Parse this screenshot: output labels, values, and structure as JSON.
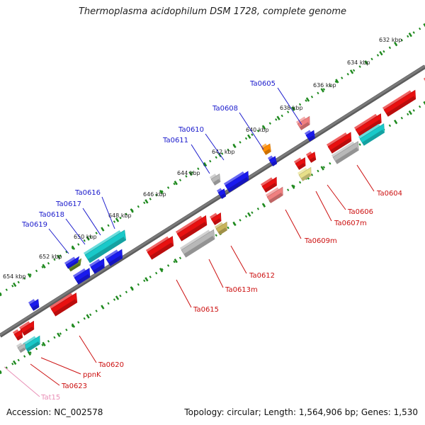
{
  "header": {
    "title": "Thermoplasma acidophilum DSM 1728, complete genome"
  },
  "footer": {
    "accession": "Accession: NC_002578",
    "summary": "Topology: circular; Length: 1,564,906 bp; Genes: 1,530"
  },
  "colors": {
    "backbone": "#7a7a7a",
    "ticks": "#1f8a1f",
    "label_upper": "#1a1acc",
    "label_lower": "#cc1010",
    "label_trna": "#e98fb6",
    "red": "#e81010",
    "blue": "#1a1aee",
    "grey": "#b8b8b8",
    "cyan": "#19c9c9",
    "pink": "#f08080",
    "orange": "#ff8c00",
    "khaki": "#c8b45a",
    "paleyellow": "#e8e08a",
    "olive": "#6b8e23"
  },
  "kbp_ticks": [
    "632 kbp",
    "634 kbp",
    "636 kbp",
    "638 kbp",
    "640 kbp",
    "642 kbp",
    "644 kbp",
    "646 kbp",
    "648 kbp",
    "650 kbp",
    "652 kbp",
    "654 kbp"
  ],
  "upper_labels": [
    "Ta0605",
    "Ta0608",
    "Ta0610",
    "Ta0611",
    "Ta0616",
    "Ta0617",
    "Ta0618",
    "Ta0619"
  ],
  "lower_labels": [
    "Ta0604",
    "Ta0606",
    "Ta0607m",
    "Ta0609m",
    "Ta0612",
    "Ta0613m",
    "Ta0615",
    "Ta0620",
    "ppnK",
    "Ta0623",
    "Tat15"
  ],
  "genes": [
    {
      "name": "gene-red-a",
      "strand": "upper",
      "color": "red"
    },
    {
      "name": "gene-pink-a",
      "strand": "upper",
      "color": "pink"
    },
    {
      "name": "gene-blue-ta0605",
      "strand": "upper",
      "color": "blue"
    },
    {
      "name": "gene-orange-ta0608",
      "strand": "upper",
      "color": "orange"
    },
    {
      "name": "gene-blue-ta0608b",
      "strand": "upper",
      "color": "blue"
    },
    {
      "name": "gene-grey-ta0611",
      "strand": "upper",
      "color": "grey"
    },
    {
      "name": "gene-blue-ta0611b",
      "strand": "upper",
      "color": "blue"
    },
    {
      "name": "gene-blue-ta0610",
      "strand": "upper",
      "color": "blue"
    },
    {
      "name": "gene-cyan-ta0616",
      "strand": "upper",
      "color": "cyan"
    },
    {
      "name": "gene-blue-b1",
      "strand": "upper",
      "color": "blue"
    },
    {
      "name": "gene-blue-b2",
      "strand": "upper",
      "color": "blue"
    },
    {
      "name": "gene-blue-b3",
      "strand": "upper",
      "color": "blue"
    },
    {
      "name": "gene-olive-ta0618",
      "strand": "upper",
      "color": "olive"
    },
    {
      "name": "gene-blue-ta0619",
      "strand": "upper",
      "color": "blue"
    },
    {
      "name": "gene-blue-c",
      "strand": "upper",
      "color": "blue"
    },
    {
      "name": "gene-red-ta0604a",
      "strand": "lower",
      "color": "red"
    },
    {
      "name": "gene-red-ta0604b",
      "strand": "lower",
      "color": "red"
    },
    {
      "name": "gene-red-ta0604c",
      "strand": "lower",
      "color": "red"
    },
    {
      "name": "gene-cyan-ta0604",
      "strand": "lower",
      "color": "cyan"
    },
    {
      "name": "gene-grey-ta0604",
      "strand": "lower",
      "color": "grey"
    },
    {
      "name": "gene-red-ta0606a",
      "strand": "lower",
      "color": "red"
    },
    {
      "name": "gene-red-ta0606b",
      "strand": "lower",
      "color": "red"
    },
    {
      "name": "gene-yellow-ta0607m",
      "strand": "lower",
      "color": "paleyellow"
    },
    {
      "name": "gene-red-ta0609m",
      "strand": "lower",
      "color": "red"
    },
    {
      "name": "gene-pink-ta0609m",
      "strand": "lower",
      "color": "pink"
    },
    {
      "name": "gene-red-ta0612",
      "strand": "lower",
      "color": "red"
    },
    {
      "name": "gene-khaki-ta0612",
      "strand": "lower",
      "color": "khaki"
    },
    {
      "name": "gene-red-ta0613m",
      "strand": "lower",
      "color": "red"
    },
    {
      "name": "gene-grey-ta0613m",
      "strand": "lower",
      "color": "grey"
    },
    {
      "name": "gene-red-ta0615",
      "strand": "lower",
      "color": "red"
    },
    {
      "name": "gene-red-ta0620",
      "strand": "lower",
      "color": "red"
    },
    {
      "name": "gene-red-ppnk",
      "strand": "lower",
      "color": "red"
    },
    {
      "name": "gene-red-ta0623",
      "strand": "lower",
      "color": "red"
    },
    {
      "name": "gene-cyan-ta0623",
      "strand": "lower",
      "color": "cyan"
    },
    {
      "name": "gene-grey-tat15",
      "strand": "lower",
      "color": "grey"
    }
  ]
}
